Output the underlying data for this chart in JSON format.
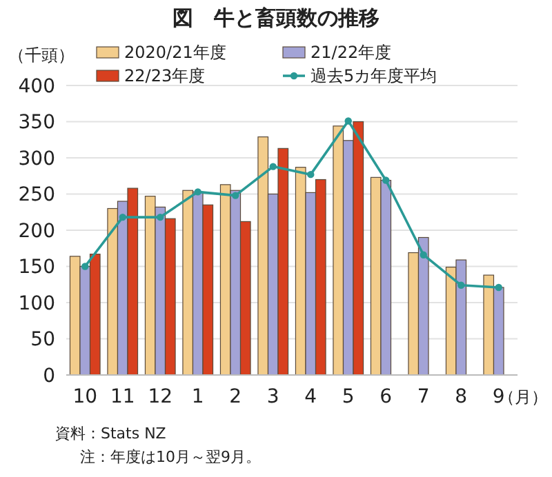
{
  "chart_data": {
    "type": "bar",
    "title": "図　牛と畜頭数の推移",
    "ylabel": "（千頭）",
    "xlabel": "（月）",
    "categories": [
      "10",
      "11",
      "12",
      "1",
      "2",
      "3",
      "4",
      "5",
      "6",
      "7",
      "8",
      "9"
    ],
    "series": [
      {
        "name": "2020/21年度",
        "color": "#f3cd8c",
        "values": [
          164,
          230,
          247,
          255,
          263,
          329,
          287,
          344,
          273,
          169,
          149,
          138
        ]
      },
      {
        "name": "21/22年度",
        "color": "#a3a3d6",
        "values": [
          150,
          240,
          232,
          253,
          255,
          250,
          252,
          324,
          269,
          190,
          159,
          121
        ]
      },
      {
        "name": "22/23年度",
        "color": "#d8401f",
        "values": [
          167,
          258,
          216,
          235,
          212,
          313,
          270,
          350,
          null,
          null,
          null,
          null
        ]
      },
      {
        "name": "過去5カ年度平均",
        "type": "line",
        "color": "#2a9a96",
        "marker": "circle",
        "values": [
          150,
          218,
          218,
          253,
          248,
          288,
          277,
          351,
          269,
          166,
          124,
          121
        ]
      }
    ],
    "ylim": [
      0,
      400
    ],
    "yticks": [
      0,
      50,
      100,
      150,
      200,
      250,
      300,
      350,
      400
    ],
    "grid": "y",
    "legend": "top",
    "annotations": [
      "資料：Stats NZ",
      "注：年度は10月～翌9月。"
    ]
  }
}
